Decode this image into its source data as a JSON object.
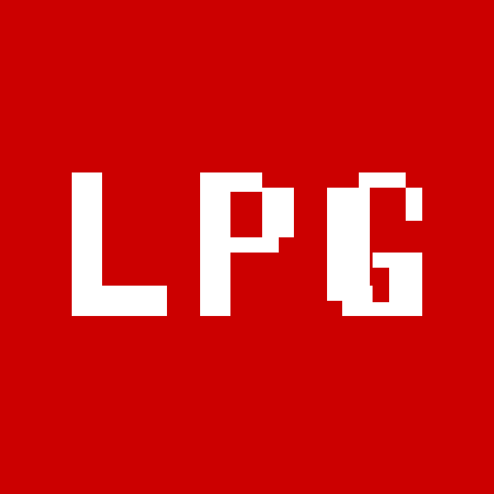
{
  "logo": {
    "text": "LPG",
    "letters": [
      "L",
      "P",
      "G"
    ],
    "style": "pixel-art bitmap letters",
    "colors": {
      "background": "#cc0000",
      "foreground": "#ffffff"
    }
  }
}
